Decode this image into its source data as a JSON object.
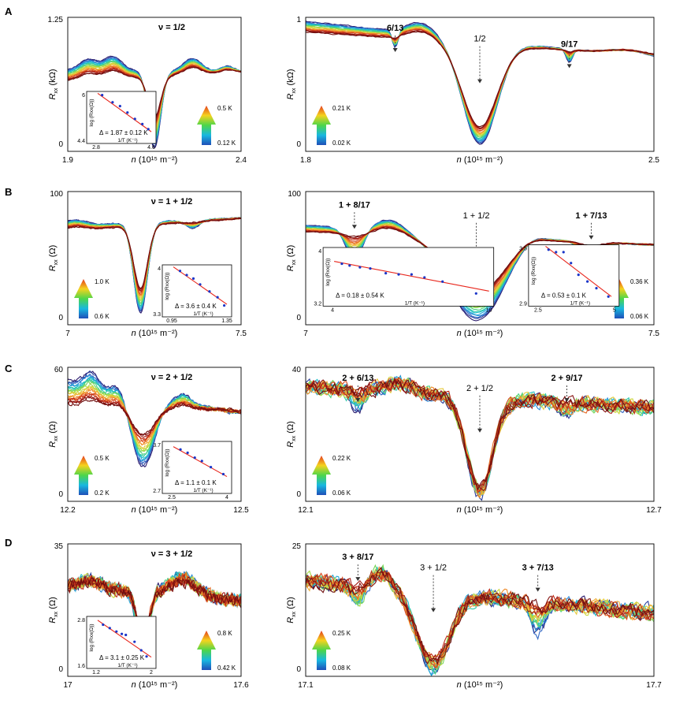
{
  "panel_letters": [
    "A",
    "B",
    "C",
    "D"
  ],
  "chart_data": [
    {
      "id": "A-left",
      "row": 0,
      "col": 0,
      "type": "line",
      "title": "ν = 1/2",
      "xlabel": "n (10¹⁵ m⁻²)",
      "ylabel": "Rxx (kΩ)",
      "xlim": [
        1.9,
        2.4
      ],
      "ylim": [
        0,
        1.25
      ],
      "x_ticks": [
        "1.9",
        "2.4"
      ],
      "y_ticks": [
        "0",
        "1.25"
      ],
      "shape": {
        "base": 0.72,
        "slope": 0.02,
        "dips": [
          [
            2.15,
            0.72,
            0.018
          ]
        ],
        "bumps": [
          [
            1.96,
            0.1,
            0.025
          ],
          [
            2.03,
            0.13,
            0.025
          ],
          [
            2.26,
            0.12,
            0.025
          ],
          [
            2.36,
            0.05,
            0.02
          ]
        ],
        "tilt": [
          1.15,
          0.9
        ],
        "bump_scale": 1.0,
        "noise": 0.004,
        "spread": 0.45
      },
      "temperature_arrow": {
        "high": "0.5 K",
        "low": "0.12 K",
        "pos": "right"
      },
      "annotations": [],
      "inset": {
        "xlim": [
          2.8,
          4.6
        ],
        "ylim": [
          4.4,
          6.0
        ],
        "x_ticks": [
          "2.8",
          "4.6"
        ],
        "y_ticks": [
          "4.4",
          "6"
        ],
        "xlabel": "1/T (K⁻¹)",
        "ylabel": "log (Rxx(Ω))",
        "delta": "Δ = 1.87 ± 0.12 K",
        "points": [
          [
            2.95,
            5.98
          ],
          [
            3.3,
            5.7
          ],
          [
            3.55,
            5.55
          ],
          [
            3.8,
            5.3
          ],
          [
            4.05,
            5.05
          ],
          [
            4.3,
            4.85
          ],
          [
            4.5,
            4.65
          ]
        ],
        "fit": [
          [
            2.8,
            6.05
          ],
          [
            4.6,
            4.55
          ]
        ],
        "pos": "left"
      }
    },
    {
      "id": "A-right",
      "row": 0,
      "col": 1,
      "type": "line",
      "title": "",
      "xlabel": "n (10¹⁵ m⁻²)",
      "ylabel": "Rxx (kΩ)",
      "xlim": [
        1.8,
        2.5
      ],
      "ylim": [
        0,
        1.0
      ],
      "x_ticks": [
        "1.8",
        "2.5"
      ],
      "y_ticks": [
        "0",
        "1"
      ],
      "shape": {
        "base": 0.82,
        "slope": -0.12,
        "dips": [
          [
            2.15,
            0.78,
            0.035
          ],
          [
            1.98,
            0.14,
            0.006
          ],
          [
            2.33,
            0.1,
            0.006
          ]
        ],
        "bumps": [
          [
            2.03,
            0.08,
            0.02
          ],
          [
            2.45,
            0.04,
            0.03
          ]
        ],
        "tilt": [
          1.05,
          0.92
        ],
        "bump_scale": 1.0,
        "noise": 0.004,
        "spread": 0.2
      },
      "temperature_arrow": {
        "high": "0.21 K",
        "low": "0.02 K",
        "pos": "left"
      },
      "annotations": [
        {
          "text": "6/13",
          "x": 1.98,
          "bold": true,
          "y": 0.9
        },
        {
          "text": "1/2",
          "x": 2.15,
          "bold": false,
          "y": 0.82
        },
        {
          "text": "9/17",
          "x": 2.33,
          "bold": true,
          "y": 0.78
        }
      ],
      "inset": null
    },
    {
      "id": "B-left",
      "row": 1,
      "col": 0,
      "type": "line",
      "title": "ν = 1 + 1/2",
      "xlabel": "n (10¹⁵ m⁻²)",
      "ylabel": "Rxx (Ω)",
      "xlim": [
        7,
        7.5
      ],
      "ylim": [
        0,
        100
      ],
      "x_ticks": [
        "7",
        "7.5"
      ],
      "y_ticks": [
        "0",
        "100"
      ],
      "shape": {
        "base": 76,
        "slope": 4,
        "dips": [
          [
            7.21,
            68,
            0.02
          ],
          [
            7.36,
            6,
            0.02
          ]
        ],
        "bumps": [
          [
            7.02,
            4,
            0.03
          ]
        ],
        "tilt": [
          1.06,
          0.96
        ],
        "bump_scale": 1.0,
        "noise": 0.4,
        "spread": 0.3
      },
      "temperature_arrow": {
        "high": "1.0 K",
        "low": "0.6 K",
        "pos": "left"
      },
      "annotations": [],
      "inset": {
        "xlim": [
          0.95,
          1.35
        ],
        "ylim": [
          3.3,
          4.0
        ],
        "x_ticks": [
          "0.95",
          "1.35"
        ],
        "y_ticks": [
          "3.3",
          "4"
        ],
        "xlabel": "1/T (K⁻¹)",
        "ylabel": "log (Rxx(Ω))",
        "delta": "Δ = 3.6 ± 0.4 K",
        "points": [
          [
            1.0,
            3.95
          ],
          [
            1.05,
            3.88
          ],
          [
            1.1,
            3.82
          ],
          [
            1.15,
            3.72
          ],
          [
            1.22,
            3.6
          ],
          [
            1.28,
            3.5
          ],
          [
            1.33,
            3.36
          ]
        ],
        "fit": [
          [
            0.95,
            4.02
          ],
          [
            1.35,
            3.38
          ]
        ],
        "pos": "right"
      }
    },
    {
      "id": "B-right",
      "row": 1,
      "col": 1,
      "type": "line",
      "title": "",
      "xlabel": "n (10¹⁵ m⁻²)",
      "ylabel": "Rxx (Ω)",
      "xlim": [
        7,
        7.5
      ],
      "ylim": [
        0,
        100
      ],
      "x_ticks": [
        "7",
        "7.5"
      ],
      "y_ticks": [
        "0",
        "100"
      ],
      "shape": {
        "base": 66,
        "slope": -6,
        "dips": [
          [
            7.245,
            64,
            0.04
          ],
          [
            7.07,
            24,
            0.012
          ],
          [
            7.41,
            28,
            0.012
          ]
        ],
        "bumps": [
          [
            7.12,
            8,
            0.02
          ],
          [
            7.32,
            6,
            0.02
          ]
        ],
        "tilt": [
          1.06,
          0.95
        ],
        "bump_scale": 1.0,
        "noise": 0.4,
        "spread": 0.35
      },
      "temperature_arrow": {
        "high": "0.36 K",
        "low": "0.06 K",
        "pos": "right"
      },
      "annotations": [
        {
          "text": "1 + 8/17",
          "x": 7.07,
          "bold": true,
          "y": 88
        },
        {
          "text": "1 + 1/2",
          "x": 7.245,
          "bold": false,
          "y": 80
        },
        {
          "text": "1 + 7/13",
          "x": 7.41,
          "bold": true,
          "y": 80
        }
      ],
      "inset": null,
      "insets": [
        {
          "xlim": [
            4,
            10
          ],
          "ylim": [
            3.2,
            4.0
          ],
          "x_ticks": [
            "4",
            "10"
          ],
          "y_ticks": [
            "3.2",
            "4"
          ],
          "xlabel": "1/T (K⁻¹)",
          "ylabel": "log (Rxx(Ω))",
          "delta": "Δ = 0.18 ± 0.54 K",
          "points": [
            [
              4.3,
              3.78
            ],
            [
              4.6,
              3.75
            ],
            [
              5.0,
              3.72
            ],
            [
              5.4,
              3.7
            ],
            [
              6.0,
              3.62
            ],
            [
              6.5,
              3.6
            ],
            [
              7.0,
              3.6
            ],
            [
              7.5,
              3.55
            ],
            [
              8.2,
              3.48
            ],
            [
              9.5,
              3.28
            ]
          ],
          "fit": [
            [
              4.0,
              3.82
            ],
            [
              10.0,
              3.32
            ]
          ],
          "box": [
            0.05,
            0.42,
            0.54,
            0.86
          ]
        },
        {
          "xlim": [
            2.5,
            5
          ],
          "ylim": [
            2.9,
            3.5
          ],
          "x_ticks": [
            "2.5",
            "5"
          ],
          "y_ticks": [
            "2.9",
            "3.5"
          ],
          "xlabel": "1/T (K⁻¹)",
          "ylabel": "log (Rxx(Ω))",
          "delta": "Δ = 0.53 ± 0.1 K",
          "points": [
            [
              2.8,
              3.48
            ],
            [
              3.05,
              3.45
            ],
            [
              3.3,
              3.45
            ],
            [
              3.55,
              3.32
            ],
            [
              3.8,
              3.18
            ],
            [
              4.1,
              3.1
            ],
            [
              4.4,
              3.02
            ],
            [
              4.8,
              2.92
            ]
          ],
          "fit": [
            [
              2.7,
              3.52
            ],
            [
              4.9,
              2.92
            ]
          ],
          "box": [
            0.64,
            0.4,
            0.9,
            0.86
          ]
        }
      ]
    },
    {
      "id": "C-left",
      "row": 2,
      "col": 0,
      "type": "line",
      "title": "ν = 2 + 1/2",
      "xlabel": "n (10¹⁵ m⁻²)",
      "ylabel": "Rxx (Ω)",
      "xlim": [
        12.2,
        12.5
      ],
      "ylim": [
        0,
        60
      ],
      "x_ticks": [
        "12.2",
        "12.5"
      ],
      "y_ticks": [
        "0",
        "60"
      ],
      "shape": {
        "base": 44,
        "slope": -4,
        "dips": [
          [
            12.33,
            32,
            0.02
          ]
        ],
        "bumps": [
          [
            12.24,
            6,
            0.02
          ],
          [
            12.29,
            4,
            0.02
          ],
          [
            12.4,
            4,
            0.02
          ]
        ],
        "tilt": [
          1.2,
          0.85
        ],
        "bump_scale": 1.0,
        "noise": 0.6,
        "spread": 0.6
      },
      "temperature_arrow": {
        "high": "0.5 K",
        "low": "0.2 K",
        "pos": "left"
      },
      "annotations": [],
      "inset": {
        "xlim": [
          2.5,
          4
        ],
        "ylim": [
          2.7,
          3.7
        ],
        "x_ticks": [
          "2.5",
          "4"
        ],
        "y_ticks": [
          "2.7",
          "3.7"
        ],
        "xlabel": "1/T (K⁻¹)",
        "ylabel": "log (Rxx(Ω))",
        "delta": "Δ = 1.1 ± 0.1 K",
        "points": [
          [
            2.7,
            3.58
          ],
          [
            2.9,
            3.5
          ],
          [
            3.1,
            3.38
          ],
          [
            3.3,
            3.3
          ],
          [
            3.55,
            3.15
          ],
          [
            3.9,
            2.98
          ]
        ],
        "fit": [
          [
            2.5,
            3.65
          ],
          [
            4.0,
            2.92
          ]
        ],
        "pos": "right"
      }
    },
    {
      "id": "C-right",
      "row": 2,
      "col": 1,
      "type": "line",
      "title": "",
      "xlabel": "n (10¹⁵ m⁻²)",
      "ylabel": "Rxx (Ω)",
      "xlim": [
        12.1,
        12.7
      ],
      "ylim": [
        0,
        40
      ],
      "x_ticks": [
        "12.1",
        "12.7"
      ],
      "y_ticks": [
        "0",
        "40"
      ],
      "shape": {
        "base": 31,
        "slope": -3,
        "dips": [
          [
            12.4,
            29,
            0.022
          ],
          [
            12.19,
            6,
            0.01
          ],
          [
            12.55,
            4,
            0.01
          ]
        ],
        "bumps": [
          [
            12.26,
            3,
            0.02
          ]
        ],
        "tilt": [
          1.0,
          1.0
        ],
        "bump_scale": 1.0,
        "noise": 1.6,
        "spread": 0.05
      },
      "temperature_arrow": {
        "high": "0.22 K",
        "low": "0.06 K",
        "pos": "left"
      },
      "annotations": [
        {
          "text": "2 + 6/13",
          "x": 12.19,
          "bold": true,
          "y": 36
        },
        {
          "text": "2 + 1/2",
          "x": 12.4,
          "bold": false,
          "y": 33
        },
        {
          "text": "2 + 9/17",
          "x": 12.55,
          "bold": true,
          "y": 36
        }
      ],
      "inset": null
    },
    {
      "id": "D-left",
      "row": 3,
      "col": 0,
      "type": "line",
      "title": "ν = 3 + 1/2",
      "xlabel": "n (10¹⁵ m⁻²)",
      "ylabel": "Rxx (Ω)",
      "xlim": [
        17,
        17.6
      ],
      "ylim": [
        0,
        35
      ],
      "x_ticks": [
        "17",
        "17.6"
      ],
      "y_ticks": [
        "0",
        "35"
      ],
      "shape": {
        "base": 22,
        "slope": -2,
        "dips": [
          [
            17.26,
            16,
            0.02
          ]
        ],
        "bumps": [
          [
            17.4,
            5,
            0.04
          ],
          [
            17.08,
            2,
            0.03
          ]
        ],
        "tilt": [
          1.0,
          1.0
        ],
        "bump_scale": 1.0,
        "noise": 1.2,
        "spread": 0.25
      },
      "temperature_arrow": {
        "high": "0.8 K",
        "low": "0.42 K",
        "pos": "right"
      },
      "annotations": [],
      "inset": {
        "xlim": [
          1.2,
          2.0
        ],
        "ylim": [
          1.6,
          2.8
        ],
        "x_ticks": [
          "1.2",
          "2"
        ],
        "y_ticks": [
          "1.6",
          "2.8"
        ],
        "xlabel": "1/T (K⁻¹)",
        "ylabel": "log (Rxx(Ω))",
        "delta": "Δ = 3.1 ± 0.25 K",
        "points": [
          [
            1.28,
            2.65
          ],
          [
            1.38,
            2.55
          ],
          [
            1.48,
            2.45
          ],
          [
            1.56,
            2.38
          ],
          [
            1.62,
            2.35
          ],
          [
            1.75,
            2.15
          ],
          [
            1.85,
            1.9
          ],
          [
            1.93,
            1.72
          ]
        ],
        "fit": [
          [
            1.2,
            2.78
          ],
          [
            2.0,
            1.7
          ]
        ],
        "pos": "left"
      }
    },
    {
      "id": "D-right",
      "row": 3,
      "col": 1,
      "type": "line",
      "title": "",
      "xlabel": "n (10¹⁵ m⁻²)",
      "ylabel": "Rxx (Ω)",
      "xlim": [
        17.1,
        17.7
      ],
      "ylim": [
        0,
        25
      ],
      "x_ticks": [
        "17.1",
        "17.7"
      ],
      "y_ticks": [
        "0",
        "25"
      ],
      "shape": {
        "base": 15,
        "slope": -3,
        "dips": [
          [
            17.32,
            14,
            0.028
          ],
          [
            17.19,
            4,
            0.012
          ],
          [
            17.5,
            6,
            0.012
          ]
        ],
        "bumps": [
          [
            17.23,
            3,
            0.015
          ]
        ],
        "tilt": [
          1.0,
          1.0
        ],
        "bump_scale": 1.0,
        "noise": 1.1,
        "spread": 0.05
      },
      "temperature_arrow": {
        "high": "0.25 K",
        "low": "0.08 K",
        "pos": "left"
      },
      "annotations": [
        {
          "text": "3 + 8/17",
          "x": 17.19,
          "bold": true,
          "y": 22
        },
        {
          "text": "3 + 1/2",
          "x": 17.32,
          "bold": false,
          "y": 20
        },
        {
          "text": "3 + 7/13",
          "x": 17.5,
          "bold": true,
          "y": 20
        }
      ],
      "inset": null
    }
  ]
}
